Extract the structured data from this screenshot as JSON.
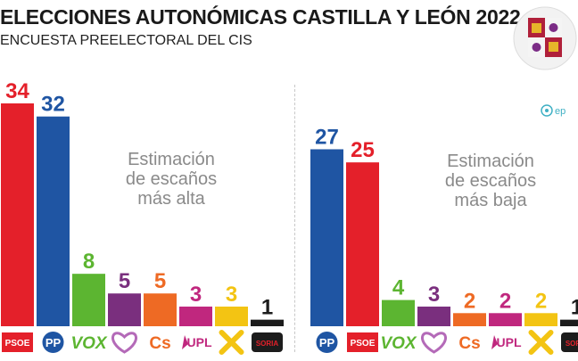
{
  "header": {
    "title": "ELECCIONES AUTONÓMICAS CASTILLA Y LEÓN 2022",
    "subtitle": "ENCUESTA PREELECTORAL DEL CIS"
  },
  "source": {
    "label": "ep"
  },
  "colors": {
    "PSOE": "#e4202a",
    "PP": "#1f55a3",
    "VOX": "#5cb531",
    "Podemos": "#7a2f7e",
    "Cs": "#ee6a24",
    "UPL": "#c0277e",
    "XAV": "#f3c413",
    "Soria": "#1c1c1c"
  },
  "chart_data": [
    {
      "type": "bar",
      "title": "Estimación de escaños más alta",
      "annotation": "Estimación\nde escaños\nmás alta",
      "categories": [
        "PSOE",
        "PP",
        "VOX",
        "Unidas Podemos",
        "Cs",
        "UPL",
        "XAV",
        "Soria ¡Ya!"
      ],
      "values": [
        34,
        32,
        8,
        5,
        5,
        3,
        3,
        1
      ],
      "colors": [
        "#e4202a",
        "#1f55a3",
        "#5cb531",
        "#7a2f7e",
        "#ee6a24",
        "#c0277e",
        "#f3c413",
        "#1c1c1c"
      ],
      "ylim": [
        0,
        34
      ]
    },
    {
      "type": "bar",
      "title": "Estimación de escaños más baja",
      "annotation": "Estimación\nde escaños\nmás baja",
      "categories": [
        "PP",
        "PSOE",
        "VOX",
        "Unidas Podemos",
        "Cs",
        "UPL",
        "XAV",
        "Soria ¡Ya!"
      ],
      "values": [
        27,
        25,
        4,
        3,
        2,
        2,
        2,
        1
      ],
      "colors": [
        "#1f55a3",
        "#e4202a",
        "#5cb531",
        "#7a2f7e",
        "#ee6a24",
        "#c0277e",
        "#f3c413",
        "#1c1c1c"
      ],
      "ylim": [
        0,
        34
      ]
    }
  ],
  "party_labels": {
    "PSOE": "PSOE",
    "PP": "PP",
    "VOX": "VOX",
    "Cs": "Cs",
    "UPL": "UPL",
    "Soria": "SORIA"
  }
}
